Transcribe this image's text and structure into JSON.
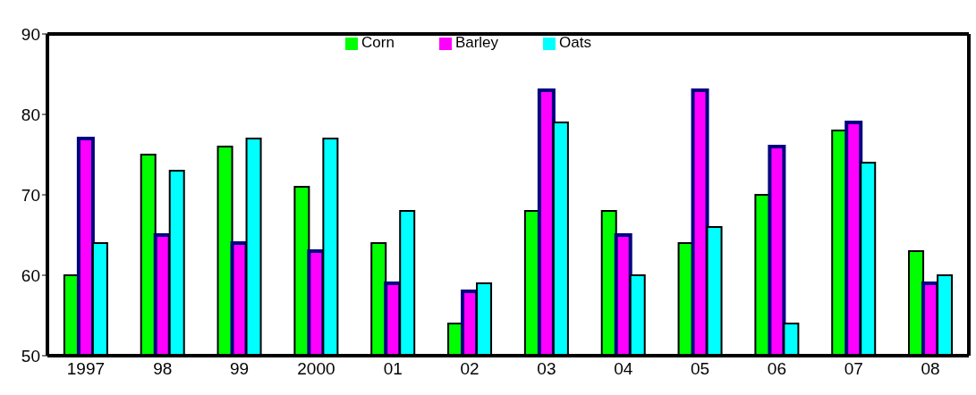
{
  "chart_data": {
    "type": "bar",
    "categories": [
      "1997",
      "98",
      "99",
      "2000",
      "01",
      "02",
      "03",
      "04",
      "05",
      "06",
      "07",
      "08"
    ],
    "series": [
      {
        "name": "Corn",
        "color": "#00ff00",
        "values": [
          60,
          75,
          76,
          71,
          64,
          54,
          68,
          68,
          64,
          70,
          78,
          63
        ]
      },
      {
        "name": "Barley",
        "color": "#ff00ff",
        "values": [
          77,
          65,
          64,
          63,
          59,
          58,
          83,
          65,
          83,
          76,
          79,
          59
        ]
      },
      {
        "name": "Oats",
        "color": "#00ffff",
        "values": [
          64,
          73,
          77,
          77,
          68,
          59,
          79,
          60,
          66,
          54,
          74,
          60
        ]
      }
    ],
    "ylim": [
      50,
      90
    ],
    "yticks": [
      50,
      60,
      70,
      80,
      90
    ],
    "grid": false,
    "legend": "top"
  }
}
